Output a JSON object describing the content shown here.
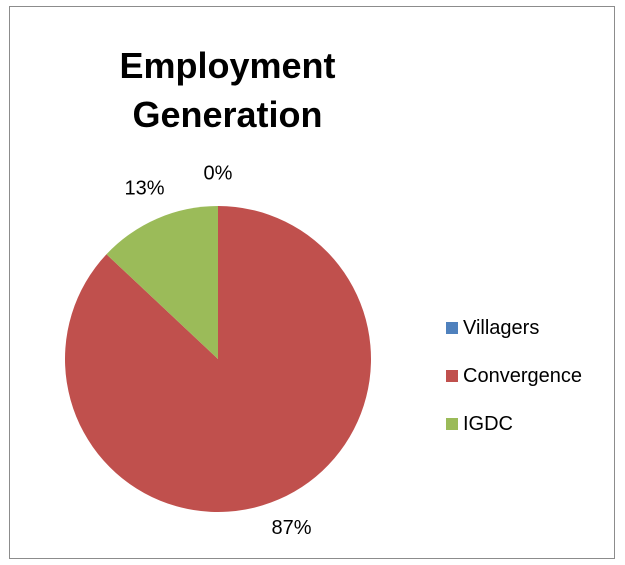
{
  "chart_data": {
    "type": "pie",
    "title_lines": [
      "Employment",
      "Generation"
    ],
    "slices": [
      {
        "label": "Villagers",
        "value": 0,
        "pct_label": "0%",
        "color": "#4f81bd"
      },
      {
        "label": "Convergence",
        "value": 87,
        "pct_label": "87%",
        "color": "#c0504d"
      },
      {
        "label": "IGDC",
        "value": 13,
        "pct_label": "13%",
        "color": "#9bbb59"
      }
    ],
    "legend_position": "right"
  }
}
